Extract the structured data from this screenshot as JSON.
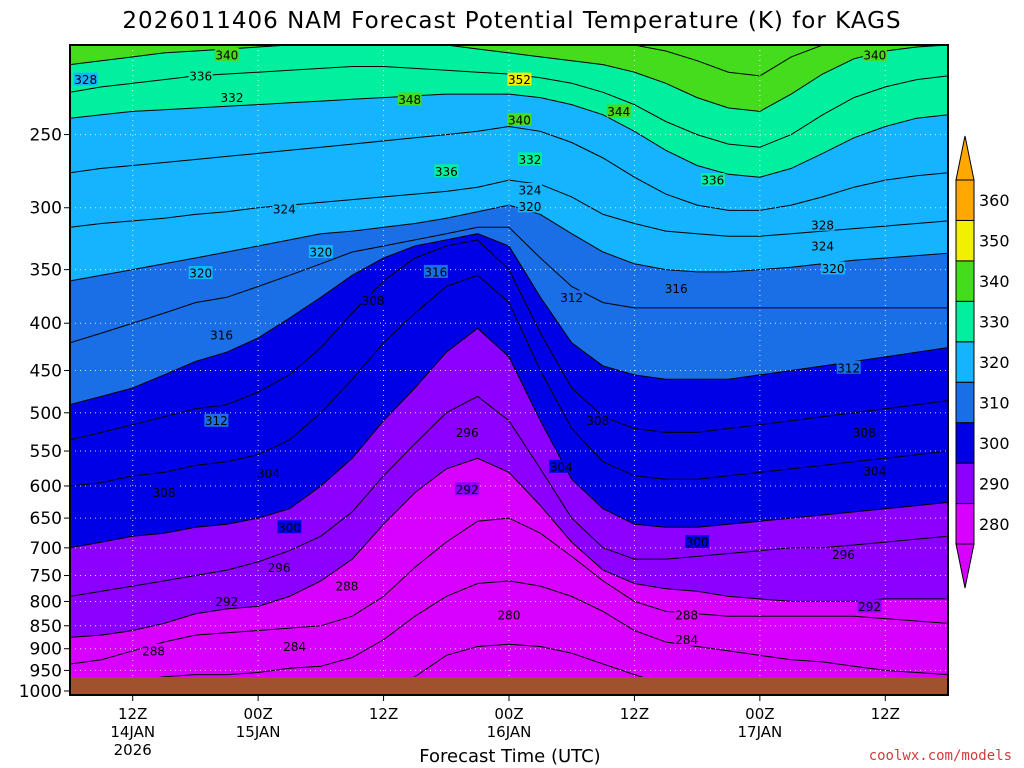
{
  "chart_data": {
    "type": "contour",
    "title": "2026011406 NAM Forecast Potential Temperature (K) for KAGS",
    "xlabel": "Forecast Time (UTC)",
    "ylabel": "",
    "credit": "coolwx.com/models",
    "y_scale": "log",
    "ylim": [
      200,
      1010
    ],
    "xlim_hours": [
      6,
      90
    ],
    "y_ticks": [
      250,
      300,
      350,
      400,
      450,
      500,
      550,
      600,
      650,
      700,
      750,
      800,
      850,
      900,
      950,
      1000
    ],
    "x_ticks": [
      {
        "hour": 12,
        "line1": "12Z",
        "line2": "14JAN",
        "line3": "2026"
      },
      {
        "hour": 24,
        "line1": "00Z",
        "line2": "15JAN",
        "line3": ""
      },
      {
        "hour": 36,
        "line1": "12Z",
        "line2": "",
        "line3": ""
      },
      {
        "hour": 48,
        "line1": "00Z",
        "line2": "16JAN",
        "line3": ""
      },
      {
        "hour": 60,
        "line1": "12Z",
        "line2": "",
        "line3": ""
      },
      {
        "hour": 72,
        "line1": "00Z",
        "line2": "17JAN",
        "line3": ""
      },
      {
        "hour": 84,
        "line1": "12Z",
        "line2": "",
        "line3": ""
      }
    ],
    "colorbar": {
      "levels": [
        280,
        290,
        300,
        310,
        320,
        330,
        340,
        350,
        360
      ],
      "colors": [
        "#d800ff",
        "#8c00ff",
        "#0000e6",
        "#1a6fe6",
        "#14b4ff",
        "#00f0a0",
        "#46dc1e",
        "#f0f000",
        "#ffa800"
      ],
      "extend": "both"
    },
    "grid": "dotted",
    "time_hours": [
      6,
      9,
      12,
      15,
      18,
      21,
      24,
      27,
      30,
      33,
      36,
      39,
      42,
      45,
      48,
      51,
      54,
      57,
      60,
      63,
      66,
      69,
      72,
      75,
      78,
      81,
      84,
      87,
      90
    ],
    "isentrope_pressure_hpa": [
      {
        "theta": 280,
        "p": [
          1010,
          1010,
          1010,
          1010,
          1010,
          1010,
          1010,
          1010,
          1010,
          1010,
          1010,
          965,
          915,
          895,
          890,
          895,
          910,
          935,
          960,
          985,
          1010,
          1010,
          1010,
          1010,
          1010,
          1010,
          1010,
          1010,
          1010
        ]
      },
      {
        "theta": 284,
        "p": [
          990,
          985,
          975,
          965,
          960,
          960,
          955,
          945,
          940,
          920,
          880,
          830,
          790,
          765,
          760,
          770,
          790,
          820,
          860,
          885,
          895,
          905,
          915,
          925,
          930,
          940,
          950,
          955,
          960
        ]
      },
      {
        "theta": 288,
        "p": [
          935,
          925,
          905,
          885,
          870,
          865,
          860,
          855,
          850,
          830,
          790,
          735,
          690,
          655,
          650,
          675,
          715,
          760,
          800,
          820,
          825,
          830,
          830,
          830,
          830,
          830,
          835,
          840,
          845
        ]
      },
      {
        "theta": 292,
        "p": [
          875,
          870,
          860,
          845,
          825,
          815,
          810,
          790,
          760,
          720,
          660,
          610,
          575,
          560,
          580,
          630,
          690,
          740,
          765,
          775,
          780,
          790,
          795,
          800,
          800,
          800,
          795,
          795,
          795
        ]
      },
      {
        "theta": 296,
        "p": [
          790,
          780,
          770,
          760,
          750,
          740,
          725,
          705,
          680,
          640,
          585,
          540,
          500,
          480,
          510,
          575,
          650,
          700,
          720,
          720,
          715,
          710,
          705,
          700,
          700,
          695,
          690,
          685,
          680
        ]
      },
      {
        "theta": 300,
        "p": [
          700,
          690,
          680,
          675,
          665,
          660,
          650,
          635,
          600,
          560,
          510,
          470,
          430,
          405,
          435,
          510,
          590,
          635,
          660,
          665,
          665,
          660,
          655,
          650,
          645,
          640,
          635,
          630,
          625
        ]
      },
      {
        "theta": 304,
        "p": [
          600,
          595,
          585,
          580,
          570,
          565,
          555,
          535,
          500,
          460,
          420,
          390,
          365,
          355,
          380,
          450,
          520,
          565,
          585,
          590,
          590,
          585,
          580,
          575,
          570,
          565,
          560,
          555,
          550
        ]
      },
      {
        "theta": 308,
        "p": [
          535,
          525,
          515,
          505,
          495,
          490,
          475,
          455,
          425,
          390,
          360,
          340,
          330,
          325,
          350,
          410,
          470,
          505,
          520,
          525,
          525,
          520,
          515,
          510,
          505,
          500,
          495,
          490,
          485
        ]
      },
      {
        "theta": 312,
        "p": [
          490,
          480,
          470,
          455,
          440,
          430,
          415,
          395,
          375,
          355,
          340,
          330,
          325,
          320,
          330,
          375,
          420,
          445,
          455,
          460,
          460,
          460,
          455,
          450,
          445,
          440,
          435,
          430,
          425
        ]
      },
      {
        "theta": 316,
        "p": [
          420,
          410,
          400,
          390,
          380,
          375,
          365,
          355,
          345,
          335,
          330,
          325,
          320,
          315,
          315,
          340,
          365,
          380,
          385,
          385,
          385,
          385,
          385,
          385,
          385,
          385,
          385,
          385,
          385
        ]
      },
      {
        "theta": 320,
        "p": [
          360,
          355,
          350,
          345,
          340,
          335,
          330,
          325,
          320,
          318,
          315,
          312,
          308,
          303,
          298,
          305,
          320,
          335,
          345,
          350,
          352,
          352,
          350,
          348,
          345,
          342,
          340,
          338,
          336
        ]
      },
      {
        "theta": 324,
        "p": [
          315,
          312,
          310,
          308,
          305,
          303,
          300,
          298,
          296,
          294,
          292,
          290,
          288,
          285,
          280,
          283,
          292,
          305,
          312,
          318,
          320,
          322,
          322,
          320,
          318,
          316,
          314,
          312,
          310
        ]
      },
      {
        "theta": 328,
        "p": [
          275,
          272,
          270,
          268,
          266,
          264,
          262,
          260,
          258,
          256,
          254,
          252,
          250,
          248,
          245,
          248,
          255,
          265,
          278,
          290,
          298,
          302,
          302,
          298,
          292,
          285,
          280,
          277,
          275
        ]
      },
      {
        "theta": 332,
        "p": [
          240,
          238,
          236,
          235,
          234,
          233,
          232,
          231,
          230,
          229,
          228,
          227,
          226,
          226,
          226,
          228,
          232,
          238,
          248,
          260,
          270,
          276,
          278,
          272,
          262,
          252,
          245,
          240,
          238
        ]
      },
      {
        "theta": 336,
        "p": [
          225,
          222,
          220,
          218,
          216,
          215,
          214,
          213,
          212,
          211,
          211,
          212,
          213,
          214,
          215,
          217,
          220,
          225,
          232,
          242,
          250,
          256,
          258,
          250,
          238,
          228,
          222,
          218,
          216
        ]
      },
      {
        "theta": 340,
        "p": [
          210,
          208,
          206,
          204,
          203,
          202,
          201,
          200,
          200,
          200,
          200,
          200,
          200,
          202,
          204,
          206,
          208,
          210,
          214,
          220,
          228,
          234,
          236,
          226,
          215,
          207,
          203,
          201,
          200
        ]
      },
      {
        "theta": 344,
        "p": [
          200,
          200,
          200,
          200,
          200,
          200,
          200,
          200,
          200,
          200,
          200,
          200,
          200,
          200,
          200,
          200,
          200,
          200,
          200,
          203,
          208,
          214,
          216,
          206,
          200,
          200,
          200,
          200,
          200
        ]
      },
      {
        "theta": 348,
        "p": [
          200,
          200,
          200,
          200,
          200,
          200,
          200,
          200,
          200,
          200,
          200,
          200,
          200,
          200,
          200,
          200,
          200,
          200,
          200,
          200,
          200,
          200,
          200,
          200,
          200,
          200,
          200,
          200,
          200
        ]
      }
    ],
    "contour_labels": [
      {
        "text": "340",
        "hour": 21,
        "p": 205
      },
      {
        "text": "336",
        "hour": 18.5,
        "p": 216
      },
      {
        "text": "332",
        "hour": 21.5,
        "p": 228
      },
      {
        "text": "328",
        "hour": 7.5,
        "p": 218
      },
      {
        "text": "348",
        "hour": 38.5,
        "p": 229
      },
      {
        "text": "352",
        "hour": 49,
        "p": 218
      },
      {
        "text": "340",
        "hour": 49,
        "p": 241
      },
      {
        "text": "344",
        "hour": 58.5,
        "p": 236
      },
      {
        "text": "332",
        "hour": 50,
        "p": 266
      },
      {
        "text": "336",
        "hour": 42,
        "p": 274
      },
      {
        "text": "336",
        "hour": 67.5,
        "p": 280
      },
      {
        "text": "340",
        "hour": 83,
        "p": 205
      },
      {
        "text": "324",
        "hour": 50,
        "p": 287
      },
      {
        "text": "320",
        "hour": 50,
        "p": 299
      },
      {
        "text": "324",
        "hour": 26.5,
        "p": 301
      },
      {
        "text": "328",
        "hour": 78,
        "p": 313
      },
      {
        "text": "324",
        "hour": 78,
        "p": 330
      },
      {
        "text": "320",
        "hour": 30,
        "p": 335
      },
      {
        "text": "320",
        "hour": 79,
        "p": 349
      },
      {
        "text": "320",
        "hour": 18.5,
        "p": 353
      },
      {
        "text": "316",
        "hour": 41,
        "p": 352
      },
      {
        "text": "312",
        "hour": 54,
        "p": 375
      },
      {
        "text": "316",
        "hour": 64,
        "p": 367
      },
      {
        "text": "308",
        "hour": 35,
        "p": 378
      },
      {
        "text": "316",
        "hour": 20.5,
        "p": 412
      },
      {
        "text": "312",
        "hour": 80.5,
        "p": 447
      },
      {
        "text": "312",
        "hour": 20,
        "p": 510
      },
      {
        "text": "308",
        "hour": 56.5,
        "p": 510
      },
      {
        "text": "308",
        "hour": 82,
        "p": 525
      },
      {
        "text": "296",
        "hour": 44,
        "p": 525
      },
      {
        "text": "304",
        "hour": 53,
        "p": 572
      },
      {
        "text": "304",
        "hour": 83,
        "p": 578
      },
      {
        "text": "304",
        "hour": 25,
        "p": 582
      },
      {
        "text": "308",
        "hour": 15,
        "p": 610
      },
      {
        "text": "292",
        "hour": 44,
        "p": 605
      },
      {
        "text": "300",
        "hour": 27,
        "p": 665
      },
      {
        "text": "300",
        "hour": 66,
        "p": 690
      },
      {
        "text": "296",
        "hour": 80,
        "p": 712
      },
      {
        "text": "296",
        "hour": 26,
        "p": 735
      },
      {
        "text": "288",
        "hour": 32.5,
        "p": 770
      },
      {
        "text": "292",
        "hour": 21,
        "p": 800
      },
      {
        "text": "292",
        "hour": 82.5,
        "p": 810
      },
      {
        "text": "288",
        "hour": 65,
        "p": 828
      },
      {
        "text": "280",
        "hour": 48,
        "p": 828
      },
      {
        "text": "284",
        "hour": 65,
        "p": 880
      },
      {
        "text": "284",
        "hour": 27.5,
        "p": 895
      },
      {
        "text": "288",
        "hour": 14,
        "p": 905
      }
    ]
  }
}
